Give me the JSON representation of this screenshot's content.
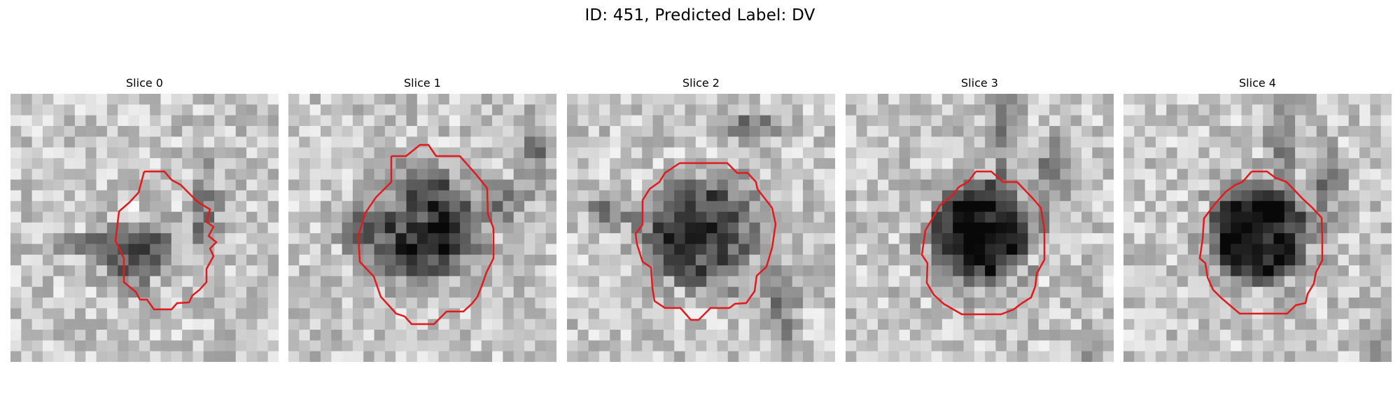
{
  "figure": {
    "title": "ID: 451, Predicted Label: DV"
  },
  "slices": [
    {
      "title": "Slice 0"
    },
    {
      "title": "Slice 1"
    },
    {
      "title": "Slice 2"
    },
    {
      "title": "Slice 3"
    },
    {
      "title": "Slice 4"
    }
  ],
  "colors": {
    "background": "#ffffff",
    "contour": "#e31a1c"
  },
  "icons": {
    "image": "grayscale-mri-slice",
    "overlay": "red-segmentation-contour"
  }
}
